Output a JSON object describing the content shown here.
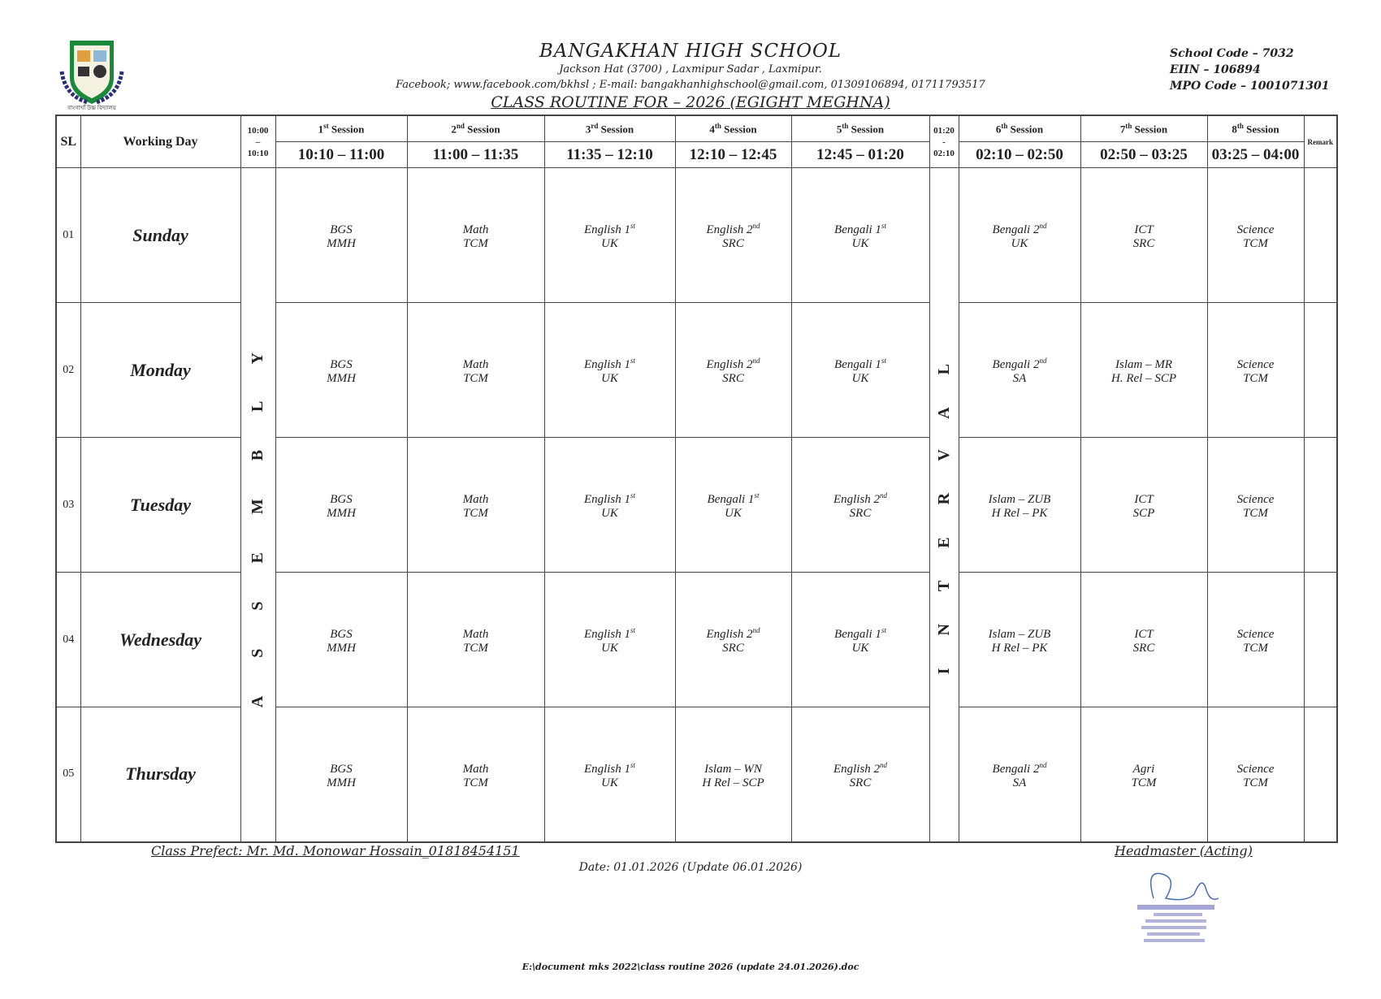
{
  "header": {
    "school_name": "BANGAKHAN  HIGH  SCHOOL",
    "address": "Jackson Hat (3700) , Laxmipur Sadar , Laxmipur.",
    "contact": "Facebook; www.facebook.com/bkhsl ; E-mail: bangakhanhighschool@gmail.com, 01309106894, 01711793517",
    "routine_title": "CLASS  ROUTINE  FOR  – 2026 (EGIGHT  MEGHNA)",
    "school_code": "School Code – 7032",
    "eiin": "EIIN – 106894",
    "mpo_code": "MPO Code – 1001071301",
    "logo_text": "বাংগাখাঁ উচ্চ বিদ্যালয়"
  },
  "colors": {
    "logo_green": "#1a8a3a",
    "logo_navy": "#2a2f7a",
    "stamp": "#5a5aa8"
  },
  "table": {
    "sl_header": "SL",
    "day_header": "Working Day",
    "assembly_time": [
      "10:00",
      "–",
      "10:10"
    ],
    "interval_time": [
      "01:20",
      "-",
      "02:10"
    ],
    "remark_header": "Remark",
    "assembly_label": "ASSEMBLY",
    "interval_label": "INTERVAL",
    "sessions": [
      {
        "num": "1",
        "sup": "st",
        "word": "Session",
        "time": "10:10 – 11:00"
      },
      {
        "num": "2",
        "sup": "nd",
        "word": "Session",
        "time": "11:00 – 11:35"
      },
      {
        "num": "3",
        "sup": "rd",
        "word": "Session",
        "time": "11:35 – 12:10"
      },
      {
        "num": "4",
        "sup": "th",
        "word": "Session",
        "time": "12:10 – 12:45"
      },
      {
        "num": "5",
        "sup": "th",
        "word": "Session",
        "time": "12:45 – 01:20"
      },
      {
        "num": "6",
        "sup": "th",
        "word": "Session",
        "time": "02:10 – 02:50"
      },
      {
        "num": "7",
        "sup": "th",
        "word": "Session",
        "time": "02:50 – 03:25"
      },
      {
        "num": "8",
        "sup": "th",
        "word": "Session",
        "time": "03:25 – 04:00"
      }
    ],
    "rows": [
      {
        "sl": "01",
        "day": "Sunday",
        "cells": [
          {
            "l1": "BGS",
            "sup": "",
            "l2": "MMH"
          },
          {
            "l1": "Math",
            "sup": "",
            "l2": "TCM"
          },
          {
            "l1": "English 1",
            "sup": "st",
            "l2": "UK"
          },
          {
            "l1": "English 2",
            "sup": "nd",
            "l2": "SRC"
          },
          {
            "l1": "Bengali 1",
            "sup": "st",
            "l2": "UK"
          },
          {
            "l1": "Bengali 2",
            "sup": "nd",
            "l2": "UK"
          },
          {
            "l1": "ICT",
            "sup": "",
            "l2": "SRC"
          },
          {
            "l1": "Science",
            "sup": "",
            "l2": "TCM"
          }
        ]
      },
      {
        "sl": "02",
        "day": "Monday",
        "cells": [
          {
            "l1": "BGS",
            "sup": "",
            "l2": "MMH"
          },
          {
            "l1": "Math",
            "sup": "",
            "l2": "TCM"
          },
          {
            "l1": "English 1",
            "sup": "st",
            "l2": "UK"
          },
          {
            "l1": "English 2",
            "sup": "nd",
            "l2": "SRC"
          },
          {
            "l1": "Bengali 1",
            "sup": "st",
            "l2": "UK"
          },
          {
            "l1": "Bengali 2",
            "sup": "nd",
            "l2": "SA"
          },
          {
            "l1": "Islam – MR",
            "sup": "",
            "l2": "H. Rel – SCP"
          },
          {
            "l1": "Science",
            "sup": "",
            "l2": "TCM"
          }
        ]
      },
      {
        "sl": "03",
        "day": "Tuesday",
        "cells": [
          {
            "l1": "BGS",
            "sup": "",
            "l2": "MMH"
          },
          {
            "l1": "Math",
            "sup": "",
            "l2": "TCM"
          },
          {
            "l1": "English 1",
            "sup": "st",
            "l2": "UK"
          },
          {
            "l1": "Bengali 1",
            "sup": "st",
            "l2": "UK"
          },
          {
            "l1": "English 2",
            "sup": "nd",
            "l2": "SRC"
          },
          {
            "l1": "Islam – ZUB",
            "sup": "",
            "l2": "H Rel – PK"
          },
          {
            "l1": "ICT",
            "sup": "",
            "l2": "SCP"
          },
          {
            "l1": "Science",
            "sup": "",
            "l2": "TCM"
          }
        ]
      },
      {
        "sl": "04",
        "day": "Wednesday",
        "cells": [
          {
            "l1": "BGS",
            "sup": "",
            "l2": "MMH"
          },
          {
            "l1": "Math",
            "sup": "",
            "l2": "TCM"
          },
          {
            "l1": "English 1",
            "sup": "st",
            "l2": "UK"
          },
          {
            "l1": "English 2",
            "sup": "nd",
            "l2": "SRC"
          },
          {
            "l1": "Bengali 1",
            "sup": "st",
            "l2": "UK"
          },
          {
            "l1": "Islam – ZUB",
            "sup": "",
            "l2": "H Rel – PK"
          },
          {
            "l1": "ICT",
            "sup": "",
            "l2": "SRC"
          },
          {
            "l1": "Science",
            "sup": "",
            "l2": "TCM"
          }
        ]
      },
      {
        "sl": "05",
        "day": "Thursday",
        "cells": [
          {
            "l1": "BGS",
            "sup": "",
            "l2": "MMH"
          },
          {
            "l1": "Math",
            "sup": "",
            "l2": "TCM"
          },
          {
            "l1": "English 1",
            "sup": "st",
            "l2": "UK"
          },
          {
            "l1": "Islam – WN",
            "sup": "",
            "l2": "H Rel – SCP"
          },
          {
            "l1": "English 2",
            "sup": "nd",
            "l2": "SRC"
          },
          {
            "l1": "Bengali 2",
            "sup": "nd",
            "l2": "SA"
          },
          {
            "l1": "Agri",
            "sup": "",
            "l2": "TCM"
          },
          {
            "l1": "Science",
            "sup": "",
            "l2": "TCM"
          }
        ]
      }
    ]
  },
  "footer": {
    "prefect": "Class Prefect: Mr. Md.  Monowar Hossain_01818454151",
    "headmaster": "Headmaster (Acting)",
    "date": "Date: 01.01.2026 (Update 06.01.2026)",
    "file_path": "E:\\document mks 2022\\class routine 2026 (update 24.01.2026).doc"
  }
}
